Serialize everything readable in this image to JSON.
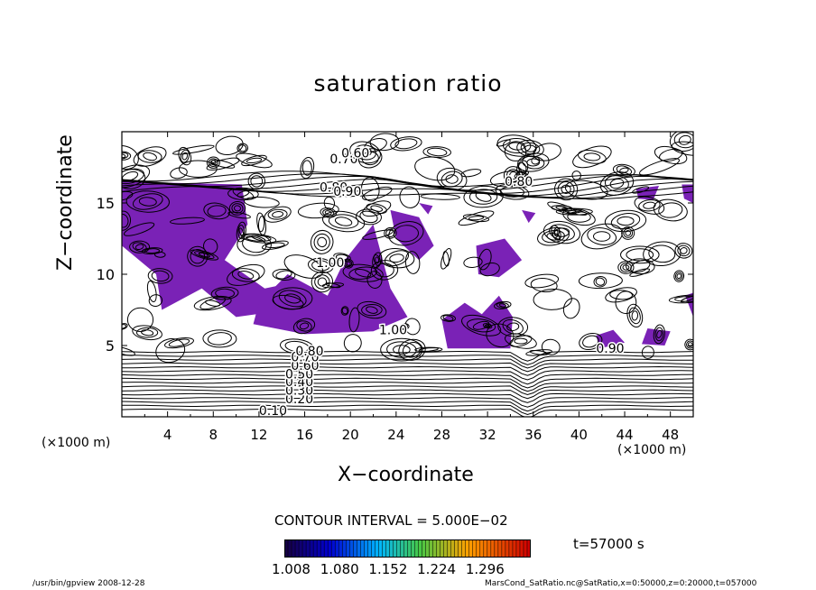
{
  "chart_data": {
    "type": "contour",
    "title": "saturation ratio",
    "xlabel": "X−coordinate",
    "ylabel": "Z−coordinate",
    "x_unit": "(×1000 m)",
    "x_ticks": [
      "4",
      "8",
      "12",
      "16",
      "20",
      "24",
      "28",
      "32",
      "36",
      "40",
      "44",
      "48"
    ],
    "y_ticks": [
      "5",
      "10",
      "15"
    ],
    "xlim": [
      0,
      50
    ],
    "ylim": [
      0,
      20
    ],
    "contour_interval": "CONTOUR INTERVAL = 5.000E−02",
    "contour_labels": [
      "0.10",
      "0.20",
      "0.30",
      "0.40",
      "0.50",
      "0.60",
      "0.70",
      "0.80",
      "0.90",
      "1.00"
    ],
    "shaded_above": 1.008,
    "colorbar_ticks": "1.008 1.080 1.152 1.224 1.296",
    "time_label": "t=57000 s",
    "colors": {
      "shade": "#7a22b6",
      "line": "#000000"
    }
  },
  "footer": {
    "left": "/usr/bin/gpview  2008-12-28",
    "right": "MarsCond_SatRatio.nc@SatRatio,x=0:50000,z=0:20000,t=057000"
  }
}
